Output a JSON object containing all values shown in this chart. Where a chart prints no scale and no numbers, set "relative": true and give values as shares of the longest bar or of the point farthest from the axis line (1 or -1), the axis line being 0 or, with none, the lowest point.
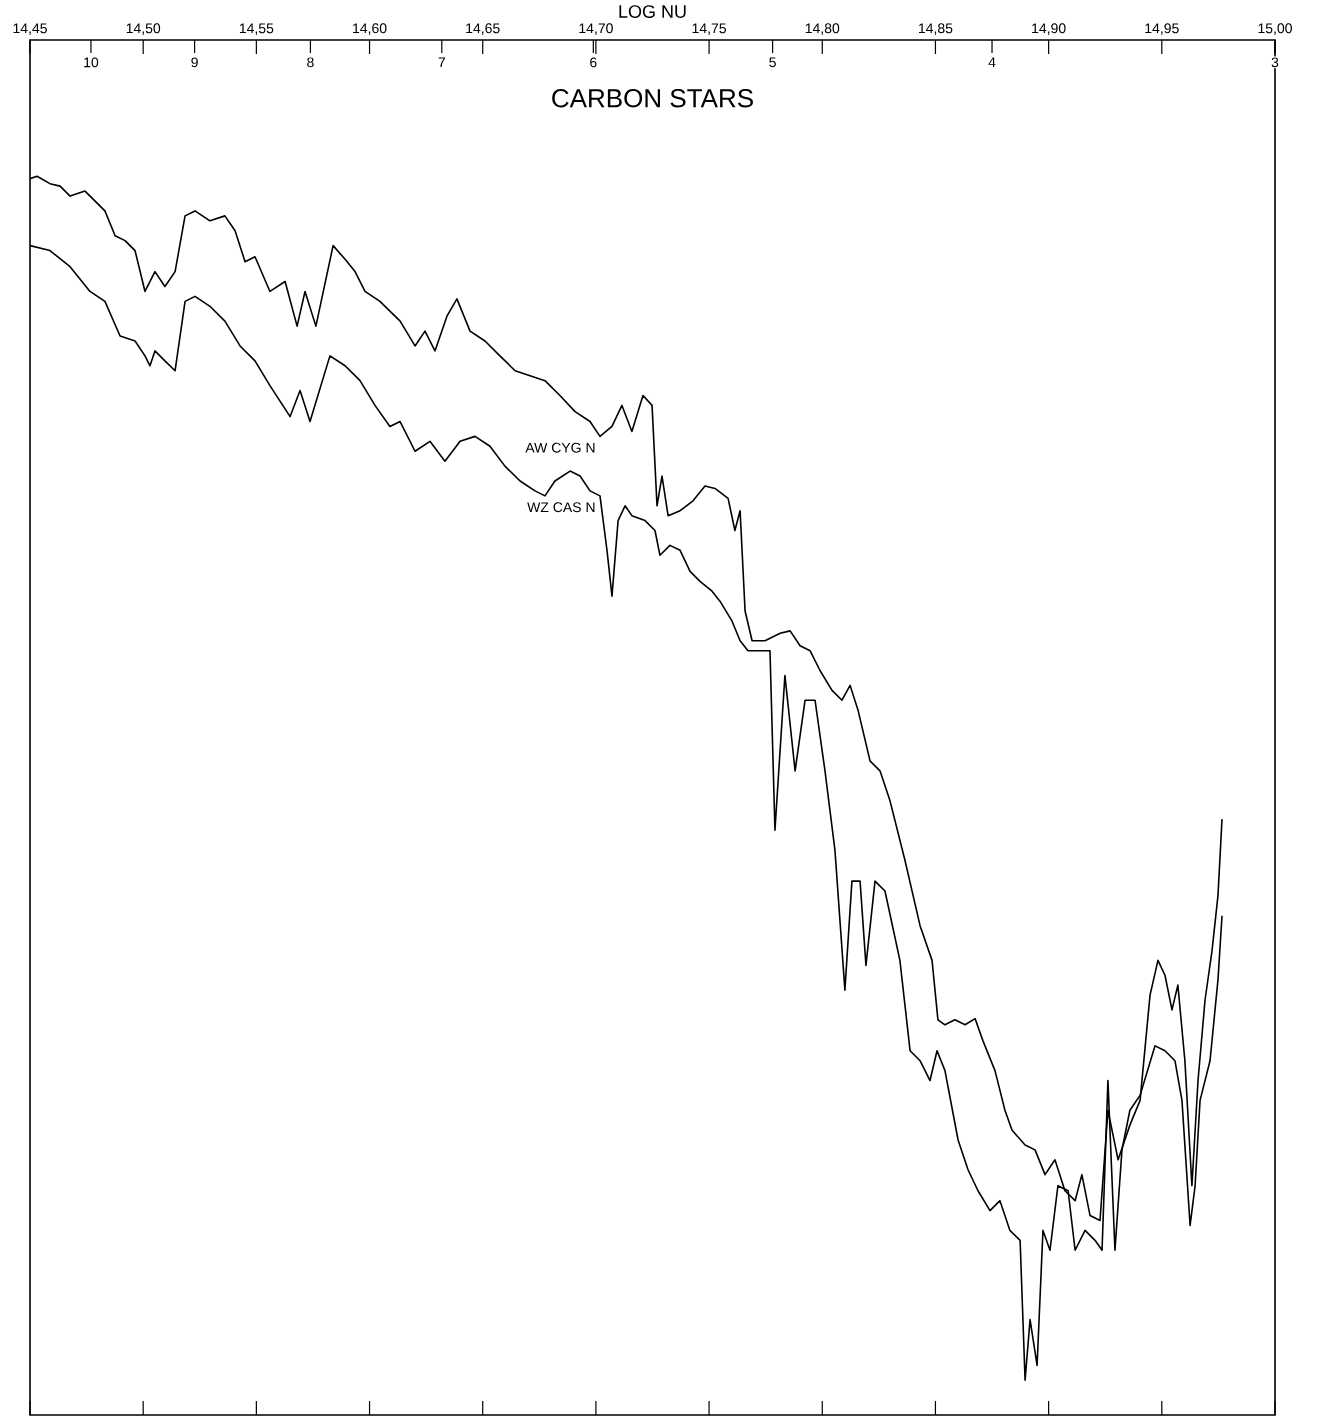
{
  "chart_data": {
    "type": "line",
    "title": "CARBON STARS",
    "xlabel": "LOG NU",
    "relative": true,
    "xlim": [
      14.45,
      15.0
    ],
    "xticks": [
      {
        "value": 14.45,
        "label": "14,45"
      },
      {
        "value": 14.5,
        "label": "14,50"
      },
      {
        "value": 14.55,
        "label": "14,55"
      },
      {
        "value": 14.6,
        "label": "14,60"
      },
      {
        "value": 14.65,
        "label": "14,65"
      },
      {
        "value": 14.7,
        "label": "14,70"
      },
      {
        "value": 14.75,
        "label": "14,75"
      },
      {
        "value": 14.8,
        "label": "14,80"
      },
      {
        "value": 14.85,
        "label": "14,85"
      },
      {
        "value": 14.9,
        "label": "14,90"
      },
      {
        "value": 14.95,
        "label": "14,95"
      },
      {
        "value": 15.0,
        "label": "15,00"
      }
    ],
    "x2lim": [
      10.64,
      3.0
    ],
    "log": "x2",
    "x2ticks": [
      10,
      9,
      8,
      7,
      6,
      5,
      4,
      3
    ],
    "series": [
      {
        "name": "AW CYG N",
        "color": "#000000",
        "x": [
          14.45,
          14.4531,
          14.4588,
          14.4633,
          14.4677,
          14.4743,
          14.4787,
          14.4831,
          14.4876,
          14.492,
          14.4964,
          14.5008,
          14.5052,
          14.5096,
          14.5141,
          14.5185,
          14.5229,
          14.5295,
          14.5361,
          14.5406,
          14.545,
          14.5494,
          14.556,
          14.5627,
          14.568,
          14.5715,
          14.5763,
          14.5839,
          14.5892,
          14.5936,
          14.598,
          14.6046,
          14.6135,
          14.6201,
          14.6245,
          14.6289,
          14.6342,
          14.6386,
          14.6444,
          14.651,
          14.6576,
          14.6643,
          14.6709,
          14.6775,
          14.6841,
          14.6908,
          14.6974,
          14.7018,
          14.7071,
          14.7115,
          14.7159,
          14.7208,
          14.7248,
          14.727,
          14.7292,
          14.7319,
          14.7372,
          14.7429,
          14.7482,
          14.7526,
          14.7584,
          14.7614,
          14.7637,
          14.7659,
          14.769,
          14.7747,
          14.7814,
          14.7858,
          14.7902,
          14.7946,
          14.799,
          14.8043,
          14.8087,
          14.8123,
          14.8158,
          14.8211,
          14.8255,
          14.8299,
          14.8365,
          14.8432,
          14.8485,
          14.8511,
          14.8542,
          14.8586,
          14.8631,
          14.8675,
          14.871,
          14.8763,
          14.8807,
          14.8838,
          14.8896,
          14.894,
          14.8984,
          14.9028,
          14.9072,
          14.9117,
          14.9147,
          14.9183,
          14.9227,
          14.9262,
          14.9307,
          14.9359,
          14.9404,
          14.9448,
          14.9483,
          14.9514,
          14.9545,
          14.9571,
          14.9602,
          14.9633,
          14.966,
          14.9691,
          14.9722,
          14.9748,
          14.9766
        ],
        "values": [
          0.998,
          1.0,
          0.994,
          0.992,
          0.984,
          0.988,
          0.98,
          0.972,
          0.952,
          0.948,
          0.94,
          0.907,
          0.923,
          0.911,
          0.923,
          0.968,
          0.972,
          0.964,
          0.968,
          0.956,
          0.931,
          0.935,
          0.907,
          0.915,
          0.879,
          0.907,
          0.879,
          0.944,
          0.933,
          0.923,
          0.907,
          0.899,
          0.883,
          0.863,
          0.875,
          0.859,
          0.887,
          0.901,
          0.875,
          0.867,
          0.855,
          0.843,
          0.839,
          0.835,
          0.823,
          0.81,
          0.802,
          0.79,
          0.798,
          0.815,
          0.794,
          0.823,
          0.815,
          0.734,
          0.758,
          0.726,
          0.73,
          0.738,
          0.75,
          0.748,
          0.74,
          0.714,
          0.73,
          0.649,
          0.625,
          0.625,
          0.631,
          0.633,
          0.621,
          0.617,
          0.601,
          0.585,
          0.577,
          0.589,
          0.569,
          0.528,
          0.52,
          0.496,
          0.448,
          0.395,
          0.367,
          0.319,
          0.315,
          0.319,
          0.315,
          0.32,
          0.302,
          0.278,
          0.246,
          0.23,
          0.218,
          0.214,
          0.194,
          0.206,
          0.181,
          0.173,
          0.194,
          0.161,
          0.157,
          0.246,
          0.206,
          0.234,
          0.254,
          0.339,
          0.367,
          0.355,
          0.327,
          0.347,
          0.286,
          0.185,
          0.27,
          0.335,
          0.375,
          0.419,
          0.481
        ]
      },
      {
        "name": "WZ CAS N",
        "color": "#000000",
        "x": [
          14.45,
          14.4588,
          14.4677,
          14.4765,
          14.4831,
          14.4898,
          14.4964,
          14.5008,
          14.503,
          14.5052,
          14.5096,
          14.5141,
          14.5185,
          14.5229,
          14.5295,
          14.5361,
          14.5428,
          14.5494,
          14.556,
          14.5649,
          14.5693,
          14.5737,
          14.5825,
          14.5892,
          14.5958,
          14.6024,
          14.609,
          14.6135,
          14.6201,
          14.6267,
          14.6333,
          14.64,
          14.6466,
          14.6532,
          14.6598,
          14.6665,
          14.6731,
          14.6775,
          14.6819,
          14.6886,
          14.693,
          14.6974,
          14.7018,
          14.7049,
          14.7071,
          14.7098,
          14.7129,
          14.7159,
          14.7217,
          14.7261,
          14.7283,
          14.7327,
          14.7372,
          14.7416,
          14.746,
          14.7513,
          14.7548,
          14.7601,
          14.7637,
          14.7672,
          14.7725,
          14.7769,
          14.7791,
          14.7835,
          14.788,
          14.7924,
          14.7968,
          14.8012,
          14.8056,
          14.81,
          14.8131,
          14.8167,
          14.8193,
          14.8233,
          14.8277,
          14.8343,
          14.8388,
          14.8432,
          14.8476,
          14.8507,
          14.8542,
          14.86,
          14.8644,
          14.8688,
          14.8741,
          14.8785,
          14.8829,
          14.8874,
          14.8896,
          14.8918,
          14.8949,
          14.8975,
          14.9006,
          14.9041,
          14.9086,
          14.9117,
          14.9161,
          14.9205,
          14.9236,
          14.9262,
          14.9293,
          14.9324,
          14.9359,
          14.9404,
          14.947,
          14.9514,
          14.9558,
          14.9589,
          14.9625,
          14.9647,
          14.9669,
          14.9713,
          14.9748,
          14.9766
        ],
        "values": [
          0.944,
          0.94,
          0.927,
          0.907,
          0.899,
          0.871,
          0.867,
          0.855,
          0.847,
          0.859,
          0.851,
          0.843,
          0.899,
          0.903,
          0.895,
          0.883,
          0.863,
          0.851,
          0.831,
          0.806,
          0.827,
          0.802,
          0.855,
          0.847,
          0.835,
          0.815,
          0.798,
          0.802,
          0.778,
          0.786,
          0.77,
          0.786,
          0.79,
          0.782,
          0.766,
          0.754,
          0.746,
          0.742,
          0.754,
          0.762,
          0.758,
          0.746,
          0.742,
          0.698,
          0.661,
          0.722,
          0.734,
          0.726,
          0.722,
          0.714,
          0.694,
          0.702,
          0.698,
          0.681,
          0.673,
          0.665,
          0.657,
          0.641,
          0.625,
          0.617,
          0.617,
          0.617,
          0.472,
          0.597,
          0.52,
          0.577,
          0.577,
          0.52,
          0.456,
          0.343,
          0.431,
          0.431,
          0.363,
          0.431,
          0.423,
          0.367,
          0.294,
          0.286,
          0.27,
          0.294,
          0.278,
          0.222,
          0.198,
          0.181,
          0.165,
          0.173,
          0.149,
          0.141,
          0.028,
          0.077,
          0.04,
          0.149,
          0.133,
          0.185,
          0.181,
          0.133,
          0.149,
          0.141,
          0.133,
          0.27,
          0.133,
          0.214,
          0.246,
          0.258,
          0.298,
          0.294,
          0.286,
          0.254,
          0.153,
          0.185,
          0.254,
          0.286,
          0.351,
          0.403
        ]
      }
    ]
  }
}
